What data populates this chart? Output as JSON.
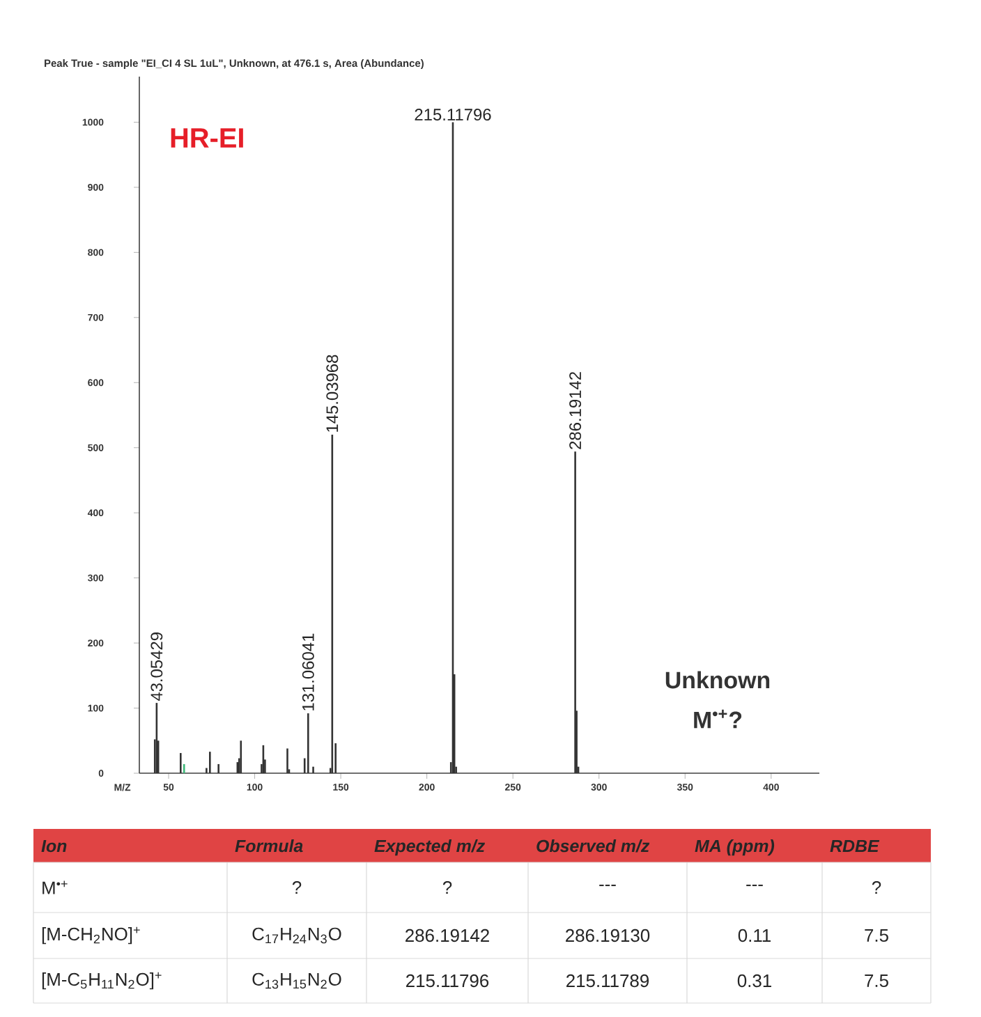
{
  "chart_data": {
    "type": "bar",
    "title": "Peak True - sample \"EI_CI 4 SL 1uL\", Unknown, at 476.1 s, Area (Abundance)",
    "xlabel": "M/Z",
    "x": [
      42,
      43.05429,
      44,
      57,
      59,
      72,
      74,
      79,
      90,
      91,
      92,
      104,
      105,
      106,
      119,
      120,
      129,
      131.06041,
      134,
      144,
      145.03968,
      147,
      214,
      215.11796,
      216,
      217,
      286.19142,
      287,
      288
    ],
    "values": [
      52,
      108,
      50,
      31,
      14,
      8,
      33,
      14,
      17,
      23,
      50,
      14,
      43,
      21,
      38,
      6,
      23,
      92,
      10,
      8,
      520,
      46,
      17,
      1000,
      152,
      10,
      494,
      96,
      10
    ],
    "colors": [
      "#333333",
      "#333333",
      "#333333",
      "#333333",
      "#3cb878",
      "#333333",
      "#333333",
      "#333333",
      "#333333",
      "#333333",
      "#333333",
      "#333333",
      "#333333",
      "#333333",
      "#333333",
      "#333333",
      "#333333",
      "#333333",
      "#333333",
      "#333333",
      "#333333",
      "#333333",
      "#333333",
      "#333333",
      "#333333",
      "#333333",
      "#333333",
      "#333333",
      "#333333"
    ],
    "xlim": [
      33,
      428
    ],
    "ylim": [
      0,
      1070
    ],
    "xticks": [
      50,
      100,
      150,
      200,
      250,
      300,
      350,
      400
    ],
    "yticks": [
      0,
      100,
      200,
      300,
      400,
      500,
      600,
      700,
      800,
      900,
      1000
    ],
    "annotations": [
      {
        "text": "43.05429",
        "x": 43.05429,
        "y": 108
      },
      {
        "text": "131.06041",
        "x": 131.06041,
        "y": 92
      },
      {
        "text": "145.03968",
        "x": 145.03968,
        "y": 520
      },
      {
        "text": "215.11796",
        "x": 215.11796,
        "y": 1000
      },
      {
        "text": "286.19142",
        "x": 286.19142,
        "y": 494
      },
      "HR-EI",
      "Unknown",
      "M$^{•+}$?",
      "Ion",
      "Formula",
      "Expected m/z",
      "Observed m/z",
      "MA (ppm)",
      "RDBE",
      "M$^{•+}$",
      "?",
      "?",
      "---",
      "---",
      "?",
      "[M-CH$_{2}$NO]$^{+}$",
      "C$_{17}$H$_{24}$N$_{3}$O",
      "286.19142",
      "286.19130",
      "0.11",
      "7.5",
      "[M-C$_{5}$H$_{11}$N$_{2}$O]$^{+}$",
      "C$_{13}$H$_{15}$N$_{2}$O",
      "215.11796",
      "215.11789",
      "0.31",
      "7.5"
    ]
  }
}
